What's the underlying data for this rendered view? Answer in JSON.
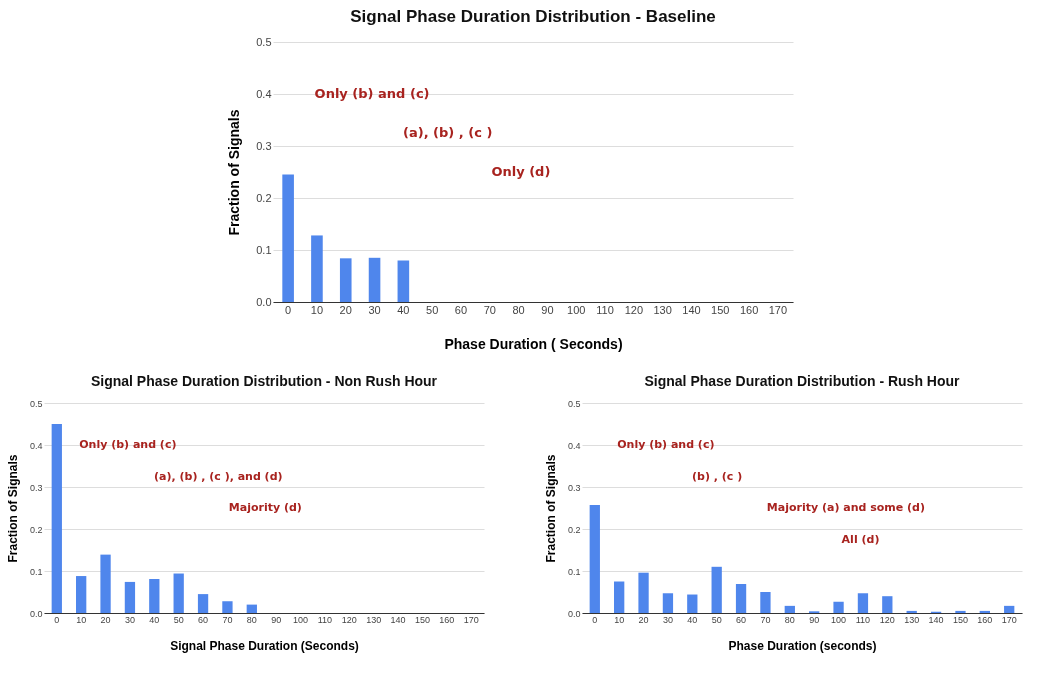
{
  "chart_data": [
    {
      "type": "bar",
      "title": "Signal Phase Duration Distribution - Baseline",
      "xlabel": "Phase Duration ( Seconds)",
      "ylabel": "Fraction of Signals",
      "categories": [
        "0",
        "10",
        "20",
        "30",
        "40",
        "50",
        "60",
        "70",
        "80",
        "90",
        "100",
        "110",
        "120",
        "130",
        "140",
        "150",
        "160",
        "170"
      ],
      "values": [
        0.245,
        0.128,
        0.084,
        0.085,
        0.08,
        0,
        0,
        0,
        0,
        0,
        0,
        0,
        0,
        0,
        0,
        0,
        0,
        0
      ],
      "color": "#4f86ec",
      "ylim": [
        0,
        0.5
      ],
      "yticks": [
        {
          "value": 0,
          "label": "0.0"
        },
        {
          "value": 0.1,
          "label": "0.1"
        },
        {
          "value": 0.2,
          "label": "0.2"
        },
        {
          "value": 0.3,
          "label": "0.3"
        },
        {
          "value": 0.4,
          "label": "0.4"
        },
        {
          "value": 0.5,
          "label": "0.5"
        }
      ],
      "grid": "y",
      "annotations": [
        "Only (b) and (c)",
        "(a), (b) , (c )",
        "Only (d)"
      ]
    },
    {
      "type": "bar",
      "title": "Signal Phase Duration Distribution - Non Rush Hour",
      "xlabel": "Signal Phase Duration (Seconds)",
      "ylabel": "Fraction of Signals",
      "categories": [
        "0",
        "10",
        "20",
        "30",
        "40",
        "50",
        "60",
        "70",
        "80",
        "90",
        "100",
        "110",
        "120",
        "130",
        "140",
        "150",
        "160",
        "170"
      ],
      "values": [
        0.45,
        0.088,
        0.139,
        0.074,
        0.081,
        0.094,
        0.045,
        0.028,
        0.02,
        0,
        0,
        0,
        0,
        0,
        0,
        0,
        0,
        0
      ],
      "color": "#4f86ec",
      "ylim": [
        0,
        0.5
      ],
      "yticks": [
        {
          "value": 0,
          "label": "0.0"
        },
        {
          "value": 0.1,
          "label": "0.1"
        },
        {
          "value": 0.2,
          "label": "0.2"
        },
        {
          "value": 0.3,
          "label": "0.3"
        },
        {
          "value": 0.4,
          "label": "0.4"
        },
        {
          "value": 0.5,
          "label": "0.5"
        }
      ],
      "grid": "y",
      "annotations": [
        "Only (b) and (c)",
        "(a), (b) , (c ), and (d)",
        "Majority (d)"
      ]
    },
    {
      "type": "bar",
      "title": "Signal Phase Duration Distribution - Rush Hour",
      "xlabel": "Phase Duration (seconds)",
      "ylabel": "Fraction of Signals",
      "categories": [
        "0",
        "10",
        "20",
        "30",
        "40",
        "50",
        "60",
        "70",
        "80",
        "90",
        "100",
        "110",
        "120",
        "130",
        "140",
        "150",
        "160",
        "170"
      ],
      "values": [
        0.257,
        0.075,
        0.096,
        0.047,
        0.044,
        0.11,
        0.069,
        0.05,
        0.017,
        0.004,
        0.027,
        0.047,
        0.04,
        0.005,
        0.003,
        0.005,
        0.005,
        0.017
      ],
      "color": "#4f86ec",
      "ylim": [
        0,
        0.5
      ],
      "yticks": [
        {
          "value": 0,
          "label": "0.0"
        },
        {
          "value": 0.1,
          "label": "0.1"
        },
        {
          "value": 0.2,
          "label": "0.2"
        },
        {
          "value": 0.3,
          "label": "0.3"
        },
        {
          "value": 0.4,
          "label": "0.4"
        },
        {
          "value": 0.5,
          "label": "0.5"
        }
      ],
      "grid": "y",
      "annotations": [
        "Only (b) and (c)",
        "(b) , (c )",
        "Majority (a) and some (d)",
        "All (d)"
      ]
    }
  ]
}
